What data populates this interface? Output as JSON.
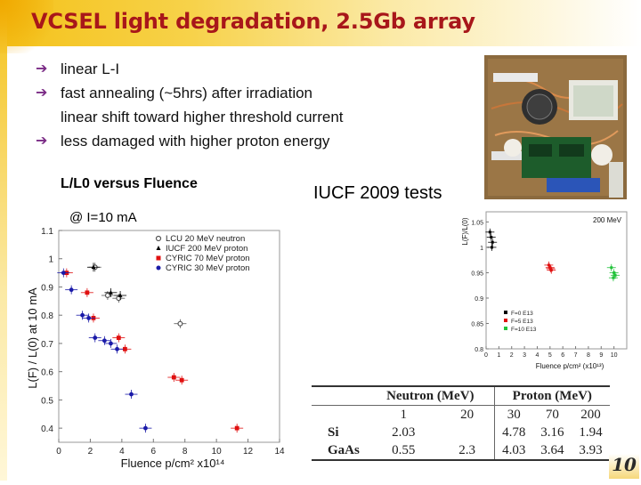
{
  "slide": {
    "title": "VCSEL light degradation, 2.5Gb array",
    "page_number": "10"
  },
  "bullets": [
    {
      "arrow": "➔",
      "text": "linear L-I"
    },
    {
      "arrow": "➔",
      "text": "fast annealing (~5hrs) after irradiation"
    },
    {
      "arrow": "",
      "text": "linear shift toward higher threshold current"
    },
    {
      "arrow": "➔",
      "text": "less damaged with higher proton energy"
    }
  ],
  "chart_title": "L/L0 versus Fluence",
  "annotation_current": "@ I=10 mA",
  "iucf_label": "IUCF 2009 tests",
  "colors": {
    "title": "#a8171a",
    "bullet_arrow": "#7b2c86",
    "neutron": "#555555",
    "iucf": "#000000",
    "cyric70": "#e01010",
    "cyric30": "#1a1aa8",
    "green": "#21c23a"
  },
  "chart_data": [
    {
      "type": "scatter",
      "title": "",
      "xlabel": "Fluence p/cm² x10¹⁴",
      "ylabel": "L(F) / L(0) at 10 mA",
      "xlim": [
        0,
        14
      ],
      "ylim": [
        0.35,
        1.1
      ],
      "x_ticks": [
        "0",
        "2",
        "4",
        "6",
        "8",
        "10",
        "12",
        "14"
      ],
      "y_ticks": [
        "0.4",
        "0.5",
        "0.6",
        "0.7",
        "0.8",
        "0.9",
        "1",
        "1.1"
      ],
      "legend_position": "top-right",
      "series": [
        {
          "name": "LCU 20 MeV neutron",
          "marker": "open-circle",
          "color": "#555555",
          "points": [
            [
              2.3,
              0.97
            ],
            [
              3.1,
              0.87
            ],
            [
              3.8,
              0.86
            ],
            [
              7.7,
              0.77
            ]
          ]
        },
        {
          "name": "IUCF 200 MeV proton",
          "marker": "triangle",
          "color": "#000000",
          "points": [
            [
              2.2,
              0.97
            ],
            [
              3.3,
              0.88
            ],
            [
              3.9,
              0.87
            ]
          ]
        },
        {
          "name": "CYRIC 70 MeV proton",
          "marker": "square",
          "color": "#e01010",
          "points": [
            [
              0.5,
              0.95
            ],
            [
              1.8,
              0.88
            ],
            [
              2.2,
              0.79
            ],
            [
              3.8,
              0.72
            ],
            [
              4.2,
              0.68
            ],
            [
              7.3,
              0.58
            ],
            [
              7.8,
              0.57
            ],
            [
              11.3,
              0.4
            ]
          ]
        },
        {
          "name": "CYRIC 30 MeV proton",
          "marker": "filled-circle",
          "color": "#1a1aa8",
          "points": [
            [
              0.3,
              0.95
            ],
            [
              0.8,
              0.89
            ],
            [
              1.5,
              0.8
            ],
            [
              1.9,
              0.79
            ],
            [
              2.3,
              0.72
            ],
            [
              2.9,
              0.71
            ],
            [
              3.3,
              0.7
            ],
            [
              3.7,
              0.68
            ],
            [
              4.6,
              0.52
            ],
            [
              5.5,
              0.4
            ]
          ]
        }
      ]
    },
    {
      "type": "scatter",
      "title": "200 MeV",
      "xlabel": "Fluence p/cm² (x10¹³)",
      "ylabel": "L(F)/L(0)",
      "xlim": [
        0,
        11
      ],
      "ylim": [
        0.8,
        1.07
      ],
      "x_ticks": [
        "0",
        "1",
        "2",
        "3",
        "4",
        "5",
        "6",
        "7",
        "8",
        "9",
        "10"
      ],
      "y_ticks": [
        "0.8",
        "0.85",
        "0.9",
        "0.95",
        "1",
        "1.05"
      ],
      "legend_position": "bottom-left",
      "series": [
        {
          "name": "F=0 E13",
          "color": "#000000",
          "points": [
            [
              0.3,
              1.03
            ],
            [
              0.4,
              1.02
            ],
            [
              0.5,
              1.01
            ],
            [
              0.45,
              1.0
            ]
          ]
        },
        {
          "name": "F=5 E13",
          "color": "#e01010",
          "points": [
            [
              4.9,
              0.965
            ],
            [
              5.0,
              0.96
            ],
            [
              5.1,
              0.955
            ],
            [
              5.05,
              0.958
            ]
          ]
        },
        {
          "name": "F=10 E13",
          "color": "#21c23a",
          "points": [
            [
              9.8,
              0.96
            ],
            [
              10.0,
              0.95
            ],
            [
              10.1,
              0.945
            ],
            [
              9.95,
              0.94
            ]
          ]
        }
      ]
    },
    {
      "type": "table",
      "group_headers": [
        "Neutron (MeV)",
        "Proton (MeV)"
      ],
      "energies": [
        "1",
        "20",
        "30",
        "70",
        "200"
      ],
      "rows": [
        {
          "label": "Si",
          "values": [
            "2.03",
            "",
            "4.78",
            "3.16",
            "1.94"
          ]
        },
        {
          "label": "GaAs",
          "values": [
            "0.55",
            "2.3",
            "4.03",
            "3.64",
            "3.93"
          ]
        }
      ]
    }
  ]
}
